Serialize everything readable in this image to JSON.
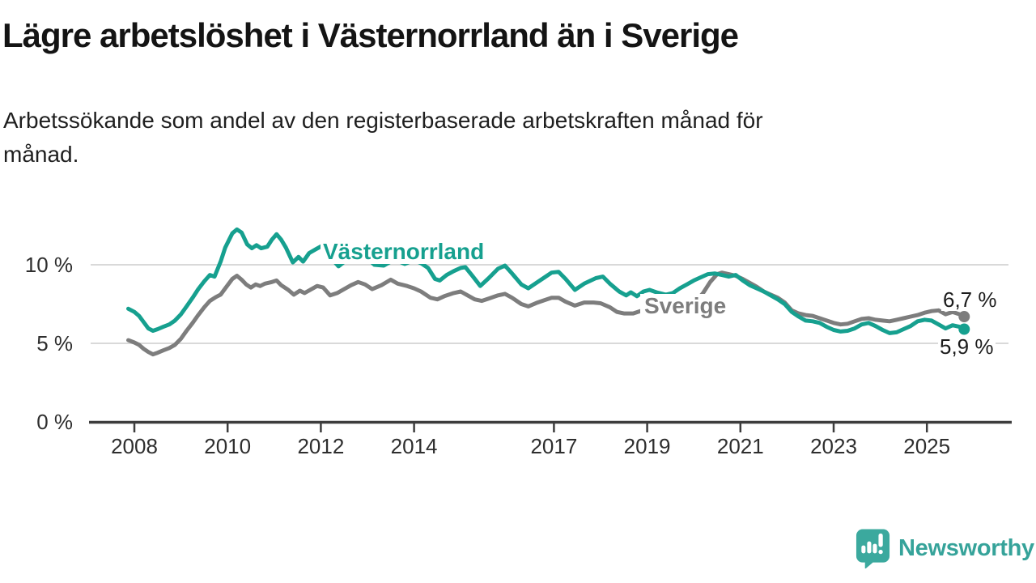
{
  "header": {
    "title": "Lägre arbetslöshet i Västernorrland än i Sverige",
    "subtitle_lines": [
      "Arbetssökande som andel av den registerbaserade arbetskraften månad för",
      "månad."
    ]
  },
  "colors": {
    "teal": "#16a08f",
    "gray": "#7d7d7d",
    "gridline": "#d9d9d9",
    "axis": "#3d3d3d",
    "text_dark": "#1c1c1c",
    "logo_teal": "#3ba99e",
    "logo_text_teal": "#36a39a"
  },
  "y_axis": {
    "labels": [
      "10 %",
      "5 %",
      "0 %"
    ]
  },
  "footer": {
    "brand": "Newsworthy",
    "logo_icon": "bar-chart-speech-bubble"
  },
  "chart_data": {
    "type": "line",
    "title": "Lägre arbetslöshet i Västernorrland än i Sverige",
    "subtitle": "Arbetssökande som andel av den registerbaserade arbetskraften månad för månad.",
    "unit": "percent of registered labour force",
    "x_unit": "decimal_year",
    "xlim": [
      2007.7,
      2026.1
    ],
    "ylim": [
      0,
      13.2
    ],
    "grid": "horizontal",
    "legend": "inline-labels",
    "y_ticks": [
      {
        "label": "0 %",
        "value": 0
      },
      {
        "label": "5 %",
        "value": 5
      },
      {
        "label": "10 %",
        "value": 10
      }
    ],
    "x_ticks": [
      {
        "label": "2008",
        "year": 2008
      },
      {
        "label": "2010",
        "year": 2010
      },
      {
        "label": "2012",
        "year": 2012
      },
      {
        "label": "2014",
        "year": 2014
      },
      {
        "label": "2017",
        "year": 2017
      },
      {
        "label": "2019",
        "year": 2019
      },
      {
        "label": "2021",
        "year": 2021
      },
      {
        "label": "2023",
        "year": 2023
      },
      {
        "label": "2025",
        "year": 2025
      }
    ],
    "series": [
      {
        "name": "Västernorrland",
        "color": "#16a08f",
        "end_label": "5,9 %",
        "end_value": 5.9,
        "points": [
          [
            2007.87,
            7.2
          ],
          [
            2008.0,
            7.0
          ],
          [
            2008.1,
            6.75
          ],
          [
            2008.2,
            6.35
          ],
          [
            2008.3,
            5.95
          ],
          [
            2008.4,
            5.8
          ],
          [
            2008.5,
            5.9
          ],
          [
            2008.62,
            6.05
          ],
          [
            2008.75,
            6.2
          ],
          [
            2008.87,
            6.45
          ],
          [
            2009.0,
            6.85
          ],
          [
            2009.12,
            7.35
          ],
          [
            2009.25,
            7.9
          ],
          [
            2009.37,
            8.45
          ],
          [
            2009.5,
            8.95
          ],
          [
            2009.62,
            9.35
          ],
          [
            2009.72,
            9.25
          ],
          [
            2009.85,
            10.2
          ],
          [
            2009.95,
            11.1
          ],
          [
            2010.1,
            12.0
          ],
          [
            2010.2,
            12.25
          ],
          [
            2010.3,
            12.05
          ],
          [
            2010.42,
            11.3
          ],
          [
            2010.52,
            11.05
          ],
          [
            2010.62,
            11.25
          ],
          [
            2010.72,
            11.05
          ],
          [
            2010.85,
            11.15
          ],
          [
            2010.95,
            11.6
          ],
          [
            2011.05,
            11.95
          ],
          [
            2011.15,
            11.6
          ],
          [
            2011.25,
            11.1
          ],
          [
            2011.4,
            10.15
          ],
          [
            2011.52,
            10.5
          ],
          [
            2011.62,
            10.2
          ],
          [
            2011.75,
            10.75
          ],
          [
            2011.9,
            11.0
          ],
          [
            2012.05,
            11.25
          ],
          [
            2012.2,
            10.5
          ],
          [
            2012.38,
            9.9
          ],
          [
            2012.55,
            10.3
          ],
          [
            2012.7,
            10.55
          ],
          [
            2012.85,
            10.7
          ],
          [
            2013.0,
            10.4
          ],
          [
            2013.15,
            10.0
          ],
          [
            2013.35,
            9.95
          ],
          [
            2013.5,
            10.2
          ],
          [
            2013.65,
            10.25
          ],
          [
            2013.8,
            10.05
          ],
          [
            2014.0,
            10.3
          ],
          [
            2014.15,
            10.1
          ],
          [
            2014.3,
            9.8
          ],
          [
            2014.45,
            9.1
          ],
          [
            2014.55,
            9.0
          ],
          [
            2014.7,
            9.35
          ],
          [
            2014.85,
            9.6
          ],
          [
            2015.0,
            9.8
          ],
          [
            2015.1,
            9.85
          ],
          [
            2015.25,
            9.3
          ],
          [
            2015.42,
            8.65
          ],
          [
            2015.6,
            9.15
          ],
          [
            2015.8,
            9.75
          ],
          [
            2015.95,
            9.95
          ],
          [
            2016.1,
            9.45
          ],
          [
            2016.3,
            8.75
          ],
          [
            2016.45,
            8.5
          ],
          [
            2016.65,
            8.9
          ],
          [
            2016.8,
            9.2
          ],
          [
            2016.95,
            9.5
          ],
          [
            2017.1,
            9.55
          ],
          [
            2017.25,
            9.1
          ],
          [
            2017.45,
            8.4
          ],
          [
            2017.65,
            8.8
          ],
          [
            2017.9,
            9.15
          ],
          [
            2018.05,
            9.25
          ],
          [
            2018.2,
            8.8
          ],
          [
            2018.4,
            8.3
          ],
          [
            2018.55,
            8.05
          ],
          [
            2018.65,
            8.25
          ],
          [
            2018.78,
            8.0
          ],
          [
            2018.92,
            8.3
          ],
          [
            2019.05,
            8.4
          ],
          [
            2019.2,
            8.25
          ],
          [
            2019.4,
            8.1
          ],
          [
            2019.55,
            8.2
          ],
          [
            2019.7,
            8.5
          ],
          [
            2019.85,
            8.75
          ],
          [
            2020.0,
            9.0
          ],
          [
            2020.15,
            9.2
          ],
          [
            2020.3,
            9.4
          ],
          [
            2020.45,
            9.45
          ],
          [
            2020.6,
            9.35
          ],
          [
            2020.75,
            9.25
          ],
          [
            2020.9,
            9.35
          ],
          [
            2021.05,
            9.0
          ],
          [
            2021.2,
            8.7
          ],
          [
            2021.35,
            8.5
          ],
          [
            2021.5,
            8.3
          ],
          [
            2021.65,
            8.05
          ],
          [
            2021.8,
            7.8
          ],
          [
            2021.95,
            7.5
          ],
          [
            2022.1,
            7.0
          ],
          [
            2022.25,
            6.7
          ],
          [
            2022.4,
            6.45
          ],
          [
            2022.55,
            6.4
          ],
          [
            2022.7,
            6.3
          ],
          [
            2022.85,
            6.05
          ],
          [
            2023.0,
            5.85
          ],
          [
            2023.15,
            5.75
          ],
          [
            2023.3,
            5.8
          ],
          [
            2023.45,
            5.95
          ],
          [
            2023.6,
            6.2
          ],
          [
            2023.75,
            6.3
          ],
          [
            2023.9,
            6.1
          ],
          [
            2024.05,
            5.85
          ],
          [
            2024.2,
            5.65
          ],
          [
            2024.35,
            5.7
          ],
          [
            2024.5,
            5.9
          ],
          [
            2024.65,
            6.1
          ],
          [
            2024.8,
            6.4
          ],
          [
            2024.95,
            6.5
          ],
          [
            2025.1,
            6.45
          ],
          [
            2025.25,
            6.2
          ],
          [
            2025.4,
            5.95
          ],
          [
            2025.55,
            6.15
          ],
          [
            2025.7,
            6.05
          ],
          [
            2025.8,
            5.9
          ]
        ]
      },
      {
        "name": "Sverige",
        "color": "#7d7d7d",
        "end_label": "6,7 %",
        "end_value": 6.7,
        "points": [
          [
            2007.87,
            5.2
          ],
          [
            2008.0,
            5.05
          ],
          [
            2008.1,
            4.9
          ],
          [
            2008.2,
            4.65
          ],
          [
            2008.3,
            4.45
          ],
          [
            2008.4,
            4.3
          ],
          [
            2008.5,
            4.4
          ],
          [
            2008.62,
            4.55
          ],
          [
            2008.75,
            4.7
          ],
          [
            2008.87,
            4.9
          ],
          [
            2009.0,
            5.3
          ],
          [
            2009.12,
            5.8
          ],
          [
            2009.25,
            6.3
          ],
          [
            2009.37,
            6.8
          ],
          [
            2009.5,
            7.3
          ],
          [
            2009.62,
            7.7
          ],
          [
            2009.75,
            7.95
          ],
          [
            2009.85,
            8.1
          ],
          [
            2009.95,
            8.5
          ],
          [
            2010.1,
            9.1
          ],
          [
            2010.2,
            9.3
          ],
          [
            2010.3,
            9.05
          ],
          [
            2010.4,
            8.75
          ],
          [
            2010.5,
            8.55
          ],
          [
            2010.6,
            8.75
          ],
          [
            2010.7,
            8.65
          ],
          [
            2010.8,
            8.8
          ],
          [
            2010.95,
            8.9
          ],
          [
            2011.05,
            9.0
          ],
          [
            2011.15,
            8.7
          ],
          [
            2011.3,
            8.4
          ],
          [
            2011.42,
            8.1
          ],
          [
            2011.55,
            8.35
          ],
          [
            2011.65,
            8.2
          ],
          [
            2011.8,
            8.45
          ],
          [
            2011.92,
            8.65
          ],
          [
            2012.05,
            8.55
          ],
          [
            2012.2,
            8.05
          ],
          [
            2012.35,
            8.2
          ],
          [
            2012.5,
            8.45
          ],
          [
            2012.65,
            8.7
          ],
          [
            2012.8,
            8.9
          ],
          [
            2012.95,
            8.75
          ],
          [
            2013.1,
            8.45
          ],
          [
            2013.3,
            8.7
          ],
          [
            2013.5,
            9.05
          ],
          [
            2013.65,
            8.8
          ],
          [
            2013.85,
            8.65
          ],
          [
            2014.0,
            8.5
          ],
          [
            2014.15,
            8.3
          ],
          [
            2014.35,
            7.9
          ],
          [
            2014.5,
            7.8
          ],
          [
            2014.65,
            8.0
          ],
          [
            2014.85,
            8.2
          ],
          [
            2015.0,
            8.3
          ],
          [
            2015.15,
            8.05
          ],
          [
            2015.3,
            7.8
          ],
          [
            2015.45,
            7.7
          ],
          [
            2015.6,
            7.85
          ],
          [
            2015.8,
            8.05
          ],
          [
            2015.95,
            8.15
          ],
          [
            2016.1,
            7.9
          ],
          [
            2016.3,
            7.5
          ],
          [
            2016.45,
            7.35
          ],
          [
            2016.65,
            7.6
          ],
          [
            2016.8,
            7.75
          ],
          [
            2016.95,
            7.9
          ],
          [
            2017.1,
            7.9
          ],
          [
            2017.25,
            7.65
          ],
          [
            2017.45,
            7.4
          ],
          [
            2017.65,
            7.6
          ],
          [
            2017.85,
            7.6
          ],
          [
            2018.0,
            7.55
          ],
          [
            2018.2,
            7.3
          ],
          [
            2018.35,
            7.0
          ],
          [
            2018.5,
            6.9
          ],
          [
            2018.7,
            6.9
          ],
          [
            2018.85,
            7.05
          ],
          [
            2019.0,
            7.1
          ],
          [
            2019.15,
            7.05
          ],
          [
            2019.3,
            7.0
          ],
          [
            2019.45,
            7.15
          ],
          [
            2019.6,
            7.25
          ],
          [
            2019.75,
            7.4
          ],
          [
            2019.9,
            7.5
          ],
          [
            2020.05,
            7.7
          ],
          [
            2020.2,
            8.2
          ],
          [
            2020.35,
            8.9
          ],
          [
            2020.5,
            9.4
          ],
          [
            2020.6,
            9.5
          ],
          [
            2020.75,
            9.4
          ],
          [
            2020.9,
            9.3
          ],
          [
            2021.05,
            9.1
          ],
          [
            2021.2,
            8.85
          ],
          [
            2021.35,
            8.6
          ],
          [
            2021.5,
            8.3
          ],
          [
            2021.65,
            8.1
          ],
          [
            2021.8,
            7.9
          ],
          [
            2021.95,
            7.6
          ],
          [
            2022.1,
            7.1
          ],
          [
            2022.25,
            6.9
          ],
          [
            2022.4,
            6.8
          ],
          [
            2022.55,
            6.75
          ],
          [
            2022.7,
            6.6
          ],
          [
            2022.85,
            6.45
          ],
          [
            2023.0,
            6.3
          ],
          [
            2023.15,
            6.2
          ],
          [
            2023.3,
            6.25
          ],
          [
            2023.45,
            6.4
          ],
          [
            2023.6,
            6.55
          ],
          [
            2023.75,
            6.6
          ],
          [
            2023.9,
            6.5
          ],
          [
            2024.05,
            6.45
          ],
          [
            2024.2,
            6.4
          ],
          [
            2024.35,
            6.5
          ],
          [
            2024.5,
            6.6
          ],
          [
            2024.65,
            6.7
          ],
          [
            2024.8,
            6.8
          ],
          [
            2024.95,
            6.95
          ],
          [
            2025.1,
            7.05
          ],
          [
            2025.25,
            7.1
          ],
          [
            2025.4,
            6.85
          ],
          [
            2025.55,
            7.0
          ],
          [
            2025.7,
            6.85
          ],
          [
            2025.8,
            6.7
          ]
        ]
      }
    ]
  }
}
